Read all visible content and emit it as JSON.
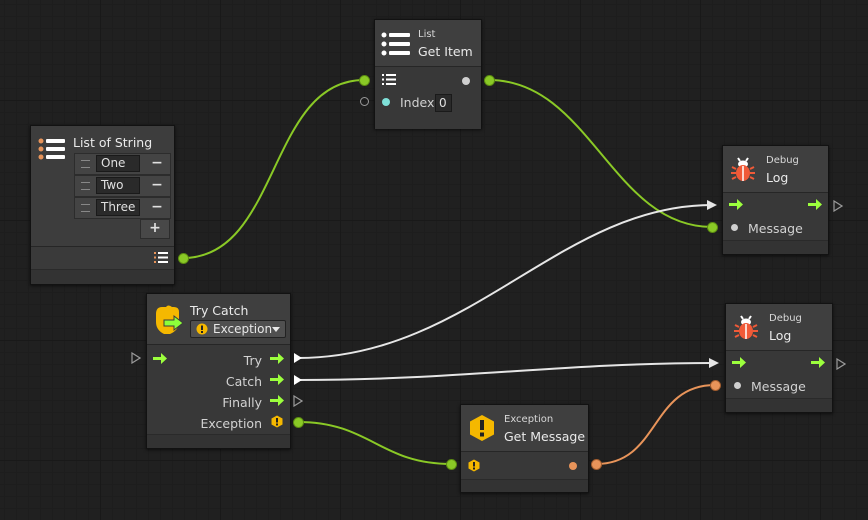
{
  "colors": {
    "flow_green": "#8ac926",
    "orange": "#e8945a",
    "white_wire": "#e6e6e6",
    "exec_arrow": "#9cff3d",
    "warning_yellow": "#f5b800"
  },
  "nodes": {
    "list_get_item": {
      "subtitle": "List",
      "title": "Get Item",
      "index_label": "Index",
      "index_value": "0"
    },
    "list_of_string": {
      "title": "List of String",
      "items": [
        "One",
        "Two",
        "Three"
      ],
      "remove_label": "−",
      "add_label": "+"
    },
    "debug_log_1": {
      "subtitle": "Debug",
      "title": "Log",
      "message_label": "Message"
    },
    "debug_log_2": {
      "subtitle": "Debug",
      "title": "Log",
      "message_label": "Message"
    },
    "try_catch": {
      "title": "Try Catch",
      "exception_type": "Exception",
      "ports": [
        "Try",
        "Catch",
        "Finally",
        "Exception"
      ]
    },
    "get_message": {
      "subtitle": "Exception",
      "title": "Get Message"
    }
  },
  "icons": [
    "list-icon",
    "debug-bug-icon",
    "try-catch-icon",
    "warning-icon",
    "exec-arrow-icon"
  ]
}
